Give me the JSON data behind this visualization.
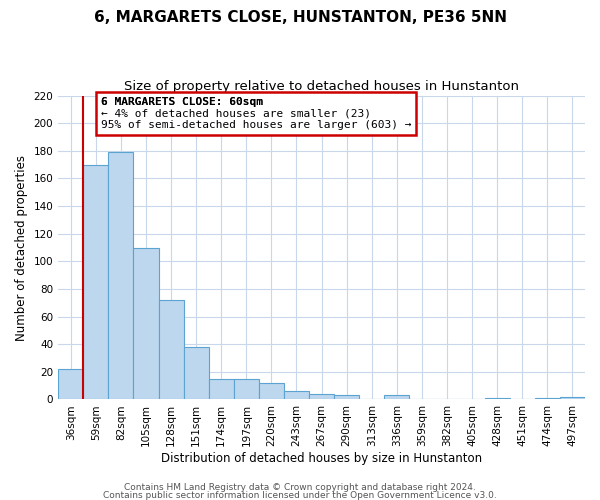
{
  "title": "6, MARGARETS CLOSE, HUNSTANTON, PE36 5NN",
  "subtitle": "Size of property relative to detached houses in Hunstanton",
  "xlabel": "Distribution of detached houses by size in Hunstanton",
  "ylabel": "Number of detached properties",
  "bar_labels": [
    "36sqm",
    "59sqm",
    "82sqm",
    "105sqm",
    "128sqm",
    "151sqm",
    "174sqm",
    "197sqm",
    "220sqm",
    "243sqm",
    "267sqm",
    "290sqm",
    "313sqm",
    "336sqm",
    "359sqm",
    "382sqm",
    "405sqm",
    "428sqm",
    "451sqm",
    "474sqm",
    "497sqm"
  ],
  "bar_heights": [
    22,
    170,
    179,
    110,
    72,
    38,
    15,
    15,
    12,
    6,
    4,
    3,
    0,
    3,
    0,
    0,
    0,
    1,
    0,
    1,
    2
  ],
  "bar_color": "#BDD7EE",
  "bar_edge_color": "#5BA3D0",
  "vline_color": "#CC0000",
  "ylim": [
    0,
    220
  ],
  "yticks": [
    0,
    20,
    40,
    60,
    80,
    100,
    120,
    140,
    160,
    180,
    200,
    220
  ],
  "annotation_title": "6 MARGARETS CLOSE: 60sqm",
  "annotation_line1": "← 4% of detached houses are smaller (23)",
  "annotation_line2": "95% of semi-detached houses are larger (603) →",
  "annotation_box_color": "#FFFFFF",
  "annotation_box_edge": "#CC0000",
  "footer_line1": "Contains HM Land Registry data © Crown copyright and database right 2024.",
  "footer_line2": "Contains public sector information licensed under the Open Government Licence v3.0.",
  "bg_color": "#FFFFFF",
  "grid_color": "#C8D8EA",
  "title_fontsize": 11,
  "subtitle_fontsize": 9.5,
  "axis_label_fontsize": 8.5,
  "tick_fontsize": 7.5,
  "annotation_fontsize": 8,
  "footer_fontsize": 6.5
}
